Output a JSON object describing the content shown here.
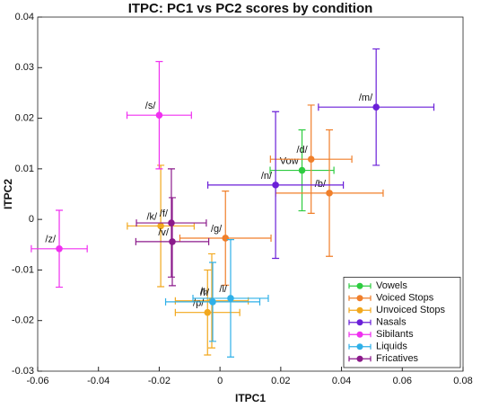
{
  "chart_data": {
    "type": "scatter",
    "title": "ITPC: PC1 vs PC2 scores by condition",
    "x_label": "ITPC1",
    "y_label": "ITPC2",
    "xlim": [
      -0.06,
      0.08
    ],
    "xticks": [
      -0.06,
      -0.04,
      -0.02,
      0,
      0.02,
      0.04,
      0.06,
      0.08
    ],
    "ylim": [
      -0.03,
      0.04
    ],
    "yticks": [
      -0.03,
      -0.02,
      -0.01,
      0,
      0.01,
      0.02,
      0.03,
      0.04
    ],
    "grid": false,
    "legend": "lower right",
    "series": [
      {
        "name": "Vowels",
        "color": "#2ecc40",
        "labels": [
          "Vow"
        ],
        "x": [
          0.027
        ],
        "values": [
          0.0097
        ],
        "xerr": [
          0.0105
        ],
        "yerr": [
          0.008
        ]
      },
      {
        "name": "Voiced Stops",
        "color": "#f07f2a",
        "labels": [
          "/d/",
          "/b/",
          "/g/"
        ],
        "x": [
          0.03,
          0.036,
          0.0018
        ],
        "values": [
          0.0119,
          0.0052,
          -0.0037
        ],
        "xerr": [
          0.0134,
          0.0177,
          0.015
        ],
        "yerr": [
          0.0107,
          0.0125,
          0.0093
        ]
      },
      {
        "name": "Unvoiced Stops",
        "color": "#f2a81d",
        "labels": [
          "/k/",
          "/t/",
          "/p/"
        ],
        "x": [
          -0.0195,
          -0.0027,
          -0.0041
        ],
        "values": [
          -0.0013,
          -0.0161,
          -0.0184
        ],
        "xerr": [
          0.011,
          0.012,
          0.0106
        ],
        "yerr": [
          0.012,
          0.0093,
          0.0084
        ]
      },
      {
        "name": "Nasals",
        "color": "#6a1fd8",
        "labels": [
          "/m/",
          "/n/"
        ],
        "x": [
          0.0514,
          0.0183
        ],
        "values": [
          0.0222,
          0.0068
        ],
        "xerr": [
          0.019,
          0.0223
        ],
        "yerr": [
          0.0115,
          0.0145
        ]
      },
      {
        "name": "Sibilants",
        "color": "#f030f0",
        "labels": [
          "/s/",
          "/z/"
        ],
        "x": [
          -0.02,
          -0.0529
        ],
        "values": [
          0.0206,
          -0.0058
        ],
        "xerr": [
          0.0106,
          0.0092
        ],
        "yerr": [
          0.0106,
          0.0076
        ]
      },
      {
        "name": "Liquids",
        "color": "#2fb0e8",
        "labels": [
          "/r/",
          "/l/"
        ],
        "x": [
          -0.0024,
          0.0035
        ],
        "values": [
          -0.0163,
          -0.0156
        ],
        "xerr": [
          0.0155,
          0.0124
        ],
        "yerr": [
          0.0078,
          0.0116
        ]
      },
      {
        "name": "Fricatives",
        "color": "#8b1a8b",
        "labels": [
          "/f/",
          "/v/"
        ],
        "x": [
          -0.016,
          -0.0157
        ],
        "values": [
          -0.0007,
          -0.0044
        ],
        "xerr": [
          0.0115,
          0.012
        ],
        "yerr": [
          0.0107,
          0.0087
        ]
      }
    ]
  }
}
